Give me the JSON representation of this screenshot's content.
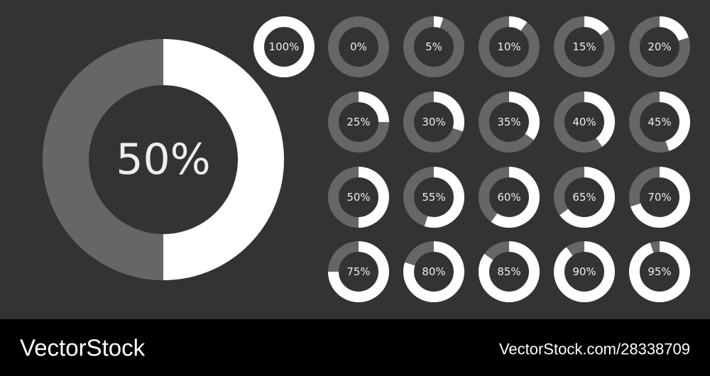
{
  "chart_data": [
    {
      "type": "donut",
      "values": [
        50
      ],
      "value_labels": [
        "50%"
      ],
      "color": "#ffffff"
    },
    {
      "type": "donut",
      "values": [
        100
      ],
      "value_labels": [
        "100%"
      ],
      "color": "#ffffff"
    },
    {
      "type": "donut",
      "values": [
        0
      ],
      "value_labels": [
        "0%"
      ],
      "color": "#ffffff"
    },
    {
      "type": "donut",
      "values": [
        5
      ],
      "value_labels": [
        "5%"
      ],
      "color": "#ffffff"
    },
    {
      "type": "donut",
      "values": [
        10
      ],
      "value_labels": [
        "10%"
      ],
      "color": "#ffffff"
    },
    {
      "type": "donut",
      "values": [
        15
      ],
      "value_labels": [
        "15%"
      ],
      "color": "#ffffff"
    },
    {
      "type": "donut",
      "values": [
        20
      ],
      "value_labels": [
        "20%"
      ],
      "color": "#ffffff"
    },
    {
      "type": "donut",
      "values": [
        25
      ],
      "value_labels": [
        "25%"
      ],
      "color": "#ffffff"
    },
    {
      "type": "donut",
      "values": [
        30
      ],
      "value_labels": [
        "30%"
      ],
      "color": "#ffffff"
    },
    {
      "type": "donut",
      "values": [
        35
      ],
      "value_labels": [
        "35%"
      ],
      "color": "#ffffff"
    },
    {
      "type": "donut",
      "values": [
        40
      ],
      "value_labels": [
        "40%"
      ],
      "color": "#ffffff"
    },
    {
      "type": "donut",
      "values": [
        45
      ],
      "value_labels": [
        "45%"
      ],
      "color": "#ffffff"
    },
    {
      "type": "donut",
      "values": [
        50
      ],
      "value_labels": [
        "50%"
      ],
      "color": "#ffffff"
    },
    {
      "type": "donut",
      "values": [
        55
      ],
      "value_labels": [
        "55%"
      ],
      "color": "#ffffff"
    },
    {
      "type": "donut",
      "values": [
        60
      ],
      "value_labels": [
        "60%"
      ],
      "color": "#ffffff"
    },
    {
      "type": "donut",
      "values": [
        65
      ],
      "value_labels": [
        "65%"
      ],
      "color": "#ffffff"
    },
    {
      "type": "donut",
      "values": [
        70
      ],
      "value_labels": [
        "70%"
      ],
      "color": "#ffffff"
    },
    {
      "type": "donut",
      "values": [
        75
      ],
      "value_labels": [
        "75%"
      ],
      "color": "#ffffff"
    },
    {
      "type": "donut",
      "values": [
        80
      ],
      "value_labels": [
        "80%"
      ],
      "color": "#ffffff"
    },
    {
      "type": "donut",
      "values": [
        85
      ],
      "value_labels": [
        "85%"
      ],
      "color": "#ffffff"
    },
    {
      "type": "donut",
      "values": [
        90
      ],
      "value_labels": [
        "90%"
      ],
      "color": "#ffffff"
    },
    {
      "type": "donut",
      "values": [
        95
      ],
      "value_labels": [
        "95%"
      ],
      "color": "#ffffff"
    }
  ],
  "footer": {
    "brand": "VectorStock",
    "id": "VectorStock.com/28338709"
  }
}
